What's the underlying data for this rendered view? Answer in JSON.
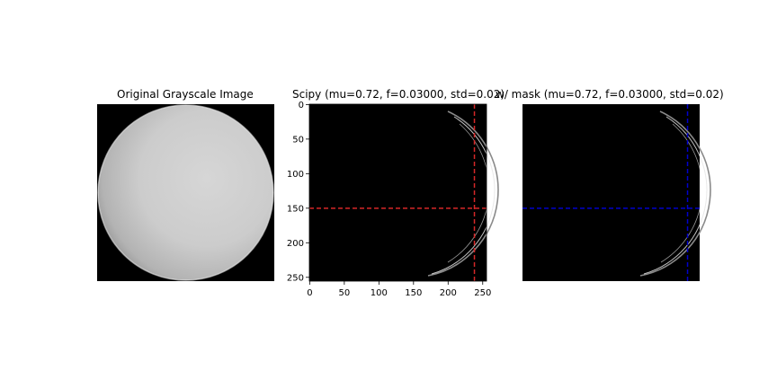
{
  "chart_data": [
    {
      "type": "image",
      "title": "Original Grayscale Image",
      "image": "grayscale sphere on black background",
      "axes_visible": false
    },
    {
      "type": "image",
      "title": "Scipy (mu=0.72, f=0.03000, std=0.02)",
      "image": "thin bright crescent edge on black background",
      "axes_visible": true,
      "xlim": [
        0,
        255
      ],
      "ylim": [
        255,
        0
      ],
      "xticks": [
        0,
        50,
        100,
        150,
        200,
        250
      ],
      "yticks": [
        0,
        50,
        100,
        150,
        200,
        250
      ],
      "crosshair": {
        "x": 238,
        "y": 150,
        "color": "#d62728",
        "style": "dashed"
      }
    },
    {
      "type": "image",
      "title": "w/ mask (mu=0.72, f=0.03000, std=0.02)",
      "image": "thin bright crescent edge on black background",
      "axes_visible": false,
      "crosshair": {
        "x": 238,
        "y": 150,
        "color": "#0000cc",
        "style": "dashed"
      }
    }
  ]
}
